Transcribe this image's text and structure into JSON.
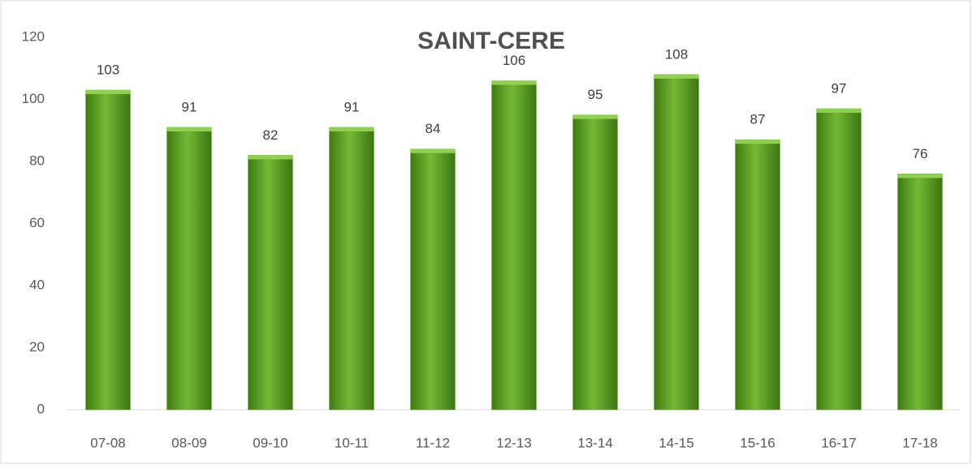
{
  "chart_data": {
    "type": "bar",
    "title": "SAINT-CERE",
    "categories": [
      "07-08",
      "08-09",
      "09-10",
      "10-11",
      "11-12",
      "12-13",
      "13-14",
      "14-15",
      "15-16",
      "16-17",
      "17-18"
    ],
    "values": [
      103,
      91,
      82,
      91,
      84,
      106,
      95,
      108,
      87,
      97,
      76
    ],
    "color": "#6aaa2a",
    "ylim": [
      0,
      120
    ],
    "yticks": [
      0,
      20,
      40,
      60,
      80,
      100,
      120
    ],
    "grid": false
  }
}
